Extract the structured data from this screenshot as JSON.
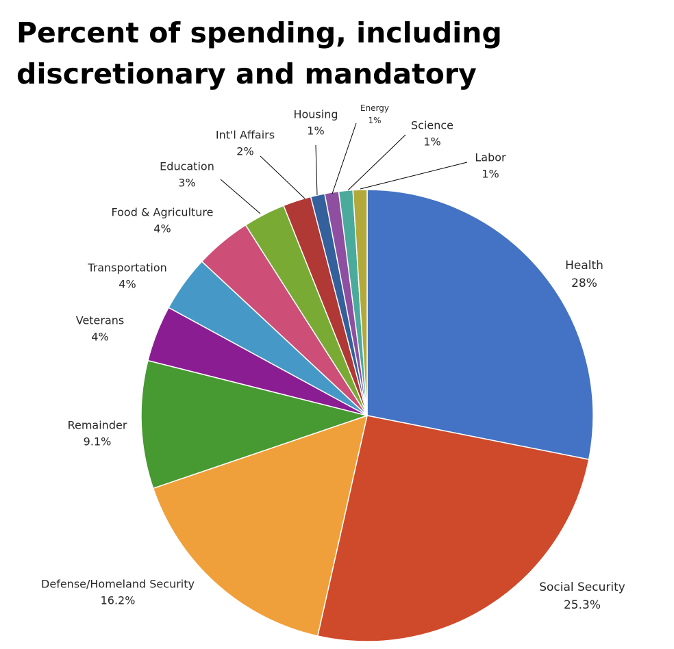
{
  "chart_data": {
    "type": "pie",
    "title": "Percent of spending, including discretionary and mandatory",
    "slices": [
      {
        "label": "Health",
        "value": 28,
        "value_label": "28%",
        "color": "#4472c4"
      },
      {
        "label": "Social Security",
        "value": 25.3,
        "value_label": "25.3%",
        "color": "#cf4a2b"
      },
      {
        "label": "Defense/Homeland Security",
        "value": 16.2,
        "value_label": "16.2%",
        "color": "#f0a03a"
      },
      {
        "label": "Remainder",
        "value": 9.1,
        "value_label": "9.1%",
        "color": "#479932"
      },
      {
        "label": "Veterans",
        "value": 4,
        "value_label": "4%",
        "color": "#8b1d92"
      },
      {
        "label": "Transportation",
        "value": 4,
        "value_label": "4%",
        "color": "#4699c6"
      },
      {
        "label": "Food & Agriculture",
        "value": 4,
        "value_label": "4%",
        "color": "#cd4f78"
      },
      {
        "label": "Education",
        "value": 3,
        "value_label": "3%",
        "color": "#79ab34"
      },
      {
        "label": "Int'l Affairs",
        "value": 2,
        "value_label": "2%",
        "color": "#b03835"
      },
      {
        "label": "Housing",
        "value": 1,
        "value_label": "1%",
        "color": "#34609b"
      },
      {
        "label": "Energy",
        "value": 1,
        "value_label": "1%",
        "color": "#8e4fa1"
      },
      {
        "label": "Science",
        "value": 1,
        "value_label": "1%",
        "color": "#4aab9c"
      },
      {
        "label": "Labor",
        "value": 1,
        "value_label": "1%",
        "color": "#b2a93a"
      }
    ]
  }
}
